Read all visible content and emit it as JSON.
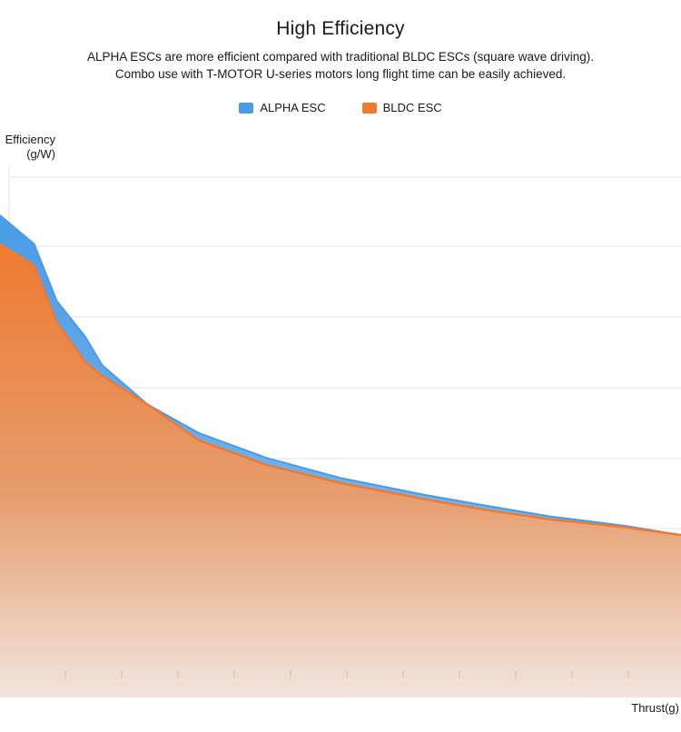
{
  "header": {
    "title": "High Efficiency",
    "subtitle_line1": "ALPHA ESCs are more efficient compared with traditional BLDC ESCs (square wave driving).",
    "subtitle_line2": "Combo use with T-MOTOR U-series motors long flight time can be easily achieved."
  },
  "colors": {
    "alpha": "#4a9be6",
    "bldc": "#f07a30",
    "grid": "#e3e3e3"
  },
  "chart_data": {
    "type": "area",
    "xlabel": "Thrust(g)",
    "ylabel": "Efficiency\n(g/W)",
    "ylabel_line1": "Efficiency",
    "ylabel_line2": "(g/W)",
    "ylim": [
      0,
      7
    ],
    "xlim": [
      0,
      12
    ],
    "grid": true,
    "legend": "top-center",
    "x": [
      0,
      0.6,
      1.0,
      1.5,
      1.8,
      2.6,
      3.5,
      4.7,
      6.0,
      7.5,
      8.5,
      9.7,
      11.0,
      12.0
    ],
    "series": [
      {
        "name": "ALPHA ESC",
        "values": [
          6.4,
          6.0,
          5.2,
          4.7,
          4.3,
          3.75,
          3.35,
          3.0,
          2.72,
          2.48,
          2.34,
          2.18,
          2.05,
          1.92
        ]
      },
      {
        "name": "BLDC ESC",
        "values": [
          6.0,
          5.7,
          4.9,
          4.35,
          4.15,
          3.75,
          3.25,
          2.9,
          2.65,
          2.42,
          2.28,
          2.14,
          2.03,
          1.92
        ]
      }
    ]
  }
}
